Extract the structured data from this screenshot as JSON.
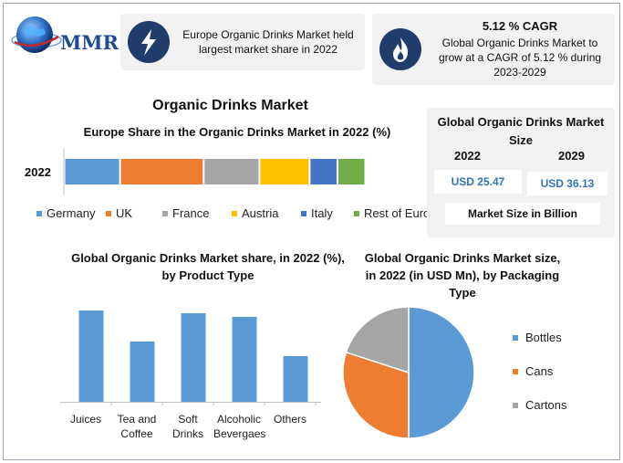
{
  "logo": {
    "text": "MMR"
  },
  "card_left": {
    "text": "Europe Organic Drinks Market held largest market share in 2022",
    "icon": "lightning-icon"
  },
  "card_right": {
    "headline": "5.12 % CAGR",
    "text": "Global Organic Drinks Market to grow at a CAGR of 5.12 % during 2023-2029",
    "icon": "flame-icon"
  },
  "main_title": "Organic Drinks Market",
  "market_size": {
    "title": "Global Organic Drinks Market Size",
    "year_2022": "2022",
    "year_2029": "2029",
    "value_2022": "USD 25.47",
    "value_2029": "USD 36.13",
    "footer": "Market Size in Billion"
  },
  "colors": {
    "blue": "#5b9bd5",
    "orange": "#ed7d31",
    "gray": "#a5a5a5",
    "yellow": "#ffc000",
    "darkblue": "#4472c4",
    "green": "#70ad47",
    "navy": "#1f3c6b"
  },
  "chart_data": [
    {
      "type": "bar",
      "orientation": "horizontal-stacked",
      "title": "Europe Share in the Organic Drinks Market in 2022 (%)",
      "categories": [
        "2022"
      ],
      "series": [
        {
          "name": "Germany",
          "values": [
            20
          ],
          "color": "#5b9bd5"
        },
        {
          "name": "UK",
          "values": [
            30
          ],
          "color": "#ed7d31"
        },
        {
          "name": "France",
          "values": [
            20
          ],
          "color": "#a5a5a5"
        },
        {
          "name": "Austria",
          "values": [
            18
          ],
          "color": "#ffc000"
        },
        {
          "name": "Italy",
          "values": [
            10
          ],
          "color": "#4472c4"
        },
        {
          "name": "Rest of Europe",
          "values": [
            10
          ],
          "color": "#70ad47"
        }
      ],
      "legend_position": "bottom"
    },
    {
      "type": "bar",
      "title": "Global Organic Drinks Market  share, in 2022 (%), by Product Type",
      "categories": [
        "Juices",
        "Tea and Coffee",
        "Soft Drinks",
        "Alcoholic Bevergaes",
        "Others"
      ],
      "values": [
        100,
        66,
        97,
        93,
        50
      ],
      "ylim": [
        0,
        100
      ],
      "grid": false,
      "color": "#5b9bd5"
    },
    {
      "type": "pie",
      "title": "Global Organic Drinks Market size, in 2022 (in USD Mn), by Packaging Type",
      "labels": [
        "Bottles",
        "Cans",
        "Cartons"
      ],
      "values": [
        50,
        30,
        20
      ],
      "colors": [
        "#5b9bd5",
        "#ed7d31",
        "#a5a5a5"
      ],
      "legend_position": "right"
    }
  ]
}
